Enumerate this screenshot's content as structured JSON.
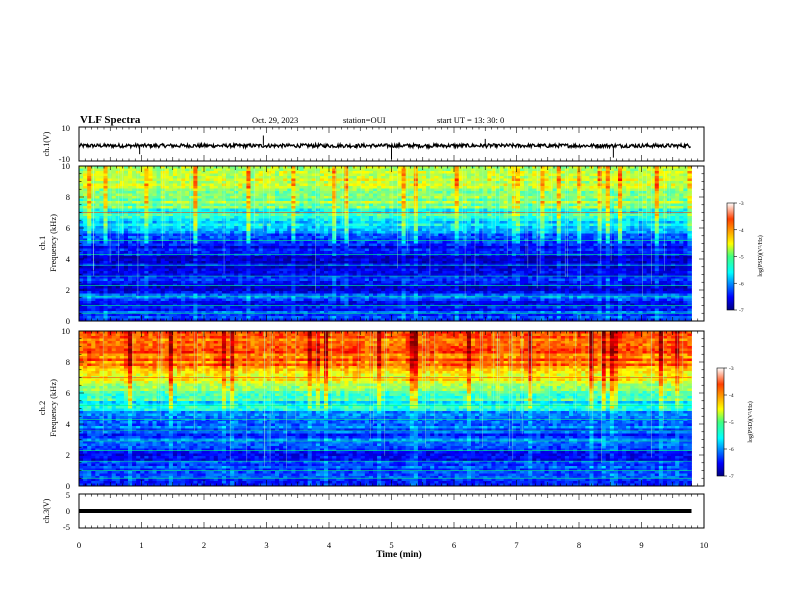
{
  "header": {
    "title": "VLF Spectra",
    "date": "Oct. 29, 2023",
    "station": "station=OUI",
    "start": "start  UT  =   13: 30: 0"
  },
  "chart_data": [
    {
      "type": "line",
      "panel": "ch1-waveform",
      "ylabel": "ch.1(V)",
      "ylim": [
        -10,
        10
      ],
      "yticks": [
        "10",
        "-10"
      ],
      "xlim": [
        0,
        10
      ],
      "series": [
        {
          "x": [
            0,
            1,
            2,
            3,
            4,
            5,
            6,
            7,
            8,
            9,
            9.8
          ],
          "y": [
            -1,
            -1,
            -1,
            -1,
            -1,
            -1,
            -1,
            -1,
            -1,
            -1,
            -1
          ]
        }
      ],
      "spikes": [
        {
          "x": 0.97,
          "y": -6
        },
        {
          "x": 2.95,
          "y": 5
        },
        {
          "x": 5.0,
          "y": -9
        },
        {
          "x": 6.5,
          "y": 3
        },
        {
          "x": 8.55,
          "y": -8
        }
      ]
    },
    {
      "type": "heatmap",
      "panel": "ch1-spectrogram",
      "ylabel_top": "ch.1",
      "ylabel": "Frequency (kHz)",
      "ylim": [
        0,
        10
      ],
      "yticks": [
        "0",
        "2",
        "4",
        "6",
        "8",
        "10"
      ],
      "xlim": [
        0,
        10
      ],
      "data_end_min": 9.8,
      "profile_freq_khz": [
        0,
        0.5,
        1,
        1.5,
        2,
        2.5,
        3,
        3.5,
        4,
        4.5,
        5,
        5.5,
        6,
        6.5,
        7,
        7.5,
        8,
        8.5,
        9,
        9.5,
        10
      ],
      "profile_logpsd": [
        -6.7,
        -6.1,
        -6.6,
        -6.1,
        -6.8,
        -6.4,
        -6.7,
        -6.6,
        -6.7,
        -6.3,
        -6.5,
        -6.3,
        -5.9,
        -5.5,
        -5.3,
        -5.0,
        -4.9,
        -4.8,
        -4.7,
        -4.7,
        -4.6
      ],
      "colorbar": {
        "label": "log(PSD)(V²/Hz)",
        "range": [
          -7,
          -3
        ],
        "ticks": [
          "-3",
          "-4",
          "-5",
          "-6",
          "-7"
        ]
      }
    },
    {
      "type": "heatmap",
      "panel": "ch2-spectrogram",
      "ylabel_top": "ch.2",
      "ylabel": "Frequency (kHz)",
      "ylim": [
        0,
        10
      ],
      "yticks": [
        "0",
        "2",
        "4",
        "6",
        "8",
        "10"
      ],
      "xlim": [
        0,
        10
      ],
      "data_end_min": 9.8,
      "profile_freq_khz": [
        0,
        0.5,
        1,
        1.5,
        2,
        2.5,
        3,
        3.5,
        4,
        4.5,
        5,
        5.5,
        6,
        6.5,
        7,
        7.5,
        8,
        8.5,
        9,
        9.5,
        10
      ],
      "profile_logpsd": [
        -6.6,
        -6.3,
        -6.4,
        -6.2,
        -6.6,
        -6.3,
        -6.1,
        -6.2,
        -6.0,
        -5.9,
        -5.6,
        -5.4,
        -5.0,
        -4.7,
        -4.4,
        -4.2,
        -4.0,
        -3.9,
        -3.8,
        -3.8,
        -3.7
      ],
      "colorbar": {
        "label": "log(PSD)(V²/Hz)",
        "range": [
          -7,
          -3
        ],
        "ticks": [
          "-3",
          "-4",
          "-5",
          "-6",
          "-7"
        ]
      }
    },
    {
      "type": "line",
      "panel": "ch3-waveform",
      "ylabel": "ch.3(V)",
      "ylim": [
        -5,
        5
      ],
      "yticks": [
        "5",
        "0",
        "-5"
      ],
      "xlim": [
        0,
        10
      ],
      "xlabel": "Time (min)",
      "xticks": [
        "0",
        "1",
        "2",
        "3",
        "4",
        "5",
        "6",
        "7",
        "8",
        "9",
        "10"
      ],
      "series": [
        {
          "x": [
            0,
            9.8
          ],
          "y": [
            0,
            0
          ]
        }
      ]
    }
  ],
  "colors": {
    "jet": [
      "#00008f",
      "#0000ff",
      "#0080ff",
      "#00ffff",
      "#80ff80",
      "#ffff00",
      "#ff8000",
      "#ff0000",
      "#800000"
    ]
  }
}
